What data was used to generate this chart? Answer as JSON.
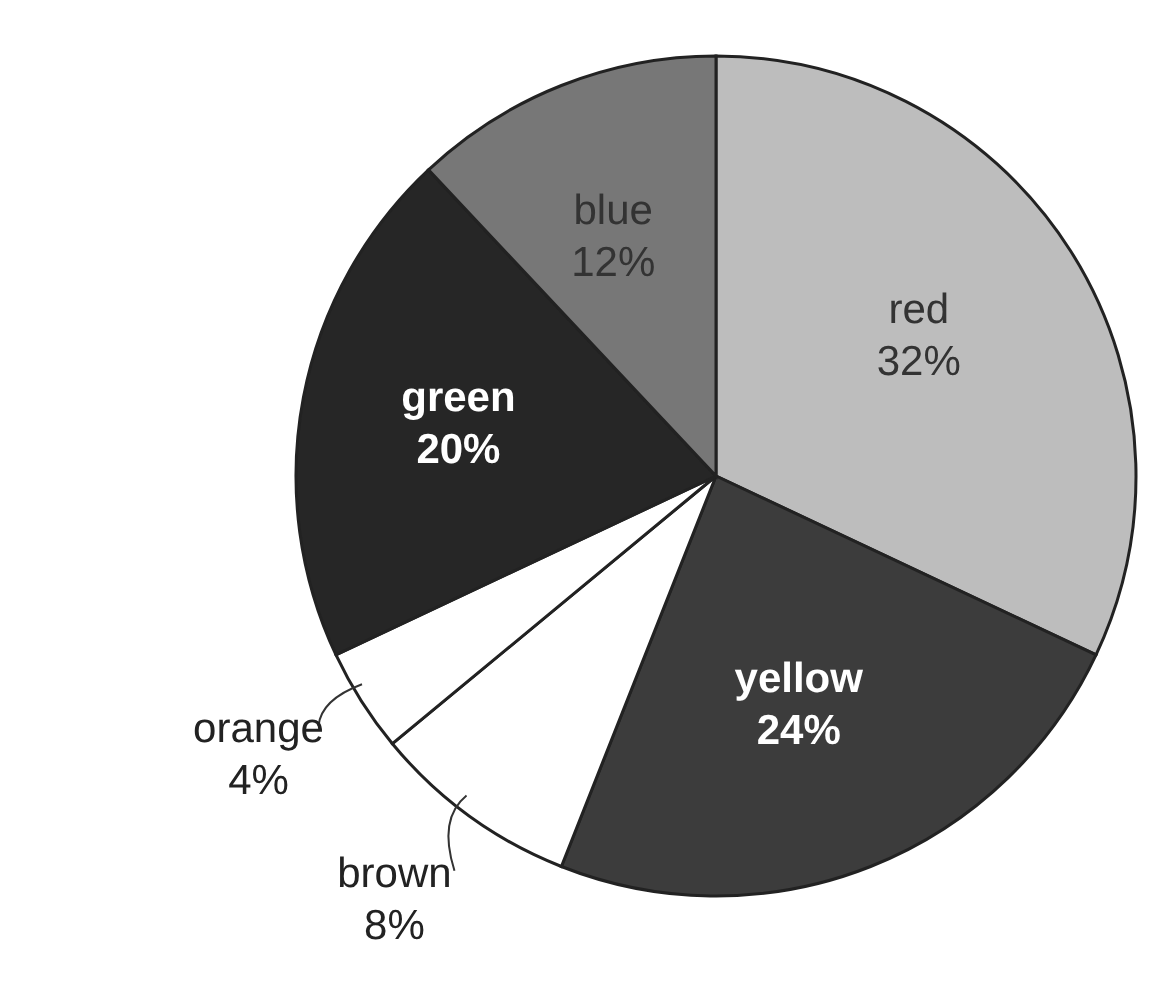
{
  "chart_data": {
    "type": "pie",
    "categories": [
      "red",
      "yellow",
      "brown",
      "orange",
      "green",
      "blue"
    ],
    "values": [
      32,
      24,
      8,
      4,
      20,
      12
    ],
    "value_labels": [
      "32%",
      "24%",
      "8%",
      "4%",
      "20%",
      "12%"
    ],
    "colors": [
      "#bdbdbd",
      "#3c3c3c",
      "#ffffff",
      "#ffffff",
      "#262626",
      "#777777"
    ]
  }
}
